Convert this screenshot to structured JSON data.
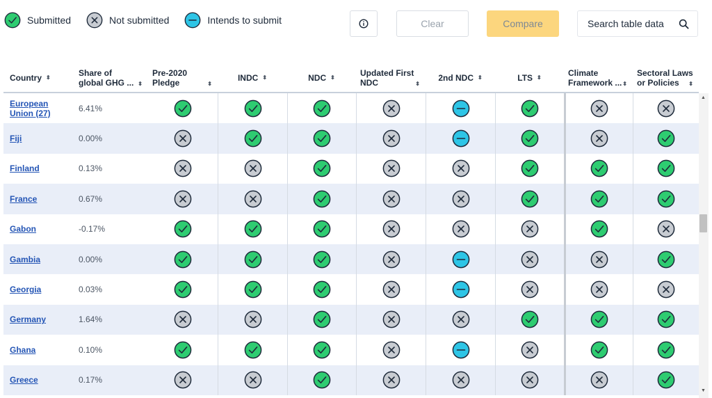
{
  "legend": [
    {
      "icon": "submitted",
      "label": "Submitted"
    },
    {
      "icon": "not-submitted",
      "label": "Not submitted"
    },
    {
      "icon": "intends",
      "label": "Intends to submit"
    }
  ],
  "toolbar": {
    "info_icon": "info-icon",
    "clear_label": "Clear",
    "compare_label": "Compare",
    "search_label": "Search table data",
    "search_icon": "search-icon"
  },
  "colors": {
    "submitted": "#2ecc71",
    "not_submitted": "#c8ccd2",
    "intends": "#2ec5e6",
    "link": "#2455b5",
    "compare_bg": "#fcd67e",
    "row_alt": "#e9eef8"
  },
  "table": {
    "columns": [
      {
        "key": "country",
        "label": "Country"
      },
      {
        "key": "share",
        "label_lines": [
          "Share of",
          "global GHG ..."
        ]
      },
      {
        "key": "pre2020",
        "label_lines": [
          "Pre-2020",
          "Pledge"
        ]
      },
      {
        "key": "indc",
        "label": "INDC"
      },
      {
        "key": "ndc",
        "label": "NDC"
      },
      {
        "key": "updated",
        "label_lines": [
          "Updated First",
          "NDC"
        ]
      },
      {
        "key": "ndc2",
        "label": "2nd NDC"
      },
      {
        "key": "lts",
        "label": "LTS"
      },
      {
        "key": "climate",
        "label_lines": [
          "Climate",
          "Framework ..."
        ]
      },
      {
        "key": "sectoral",
        "label_lines": [
          "Sectoral Laws",
          "or Policies"
        ]
      }
    ],
    "sort_glyph": "⬍",
    "rows": [
      {
        "country": "European Union (27)",
        "share": "6.41%",
        "statuses": [
          "submitted",
          "submitted",
          "submitted",
          "not-submitted",
          "intends",
          "submitted",
          "not-submitted",
          "not-submitted"
        ]
      },
      {
        "country": "Fiji",
        "share": "0.00%",
        "statuses": [
          "not-submitted",
          "submitted",
          "submitted",
          "not-submitted",
          "intends",
          "submitted",
          "not-submitted",
          "submitted"
        ]
      },
      {
        "country": "Finland",
        "share": "0.13%",
        "statuses": [
          "not-submitted",
          "not-submitted",
          "submitted",
          "not-submitted",
          "not-submitted",
          "submitted",
          "submitted",
          "submitted"
        ]
      },
      {
        "country": "France",
        "share": "0.67%",
        "statuses": [
          "not-submitted",
          "not-submitted",
          "submitted",
          "not-submitted",
          "not-submitted",
          "submitted",
          "submitted",
          "submitted"
        ]
      },
      {
        "country": "Gabon",
        "share": "-0.17%",
        "statuses": [
          "submitted",
          "submitted",
          "submitted",
          "not-submitted",
          "not-submitted",
          "not-submitted",
          "submitted",
          "not-submitted"
        ]
      },
      {
        "country": "Gambia",
        "share": "0.00%",
        "statuses": [
          "submitted",
          "submitted",
          "submitted",
          "not-submitted",
          "intends",
          "not-submitted",
          "not-submitted",
          "submitted"
        ]
      },
      {
        "country": "Georgia",
        "share": "0.03%",
        "statuses": [
          "submitted",
          "submitted",
          "submitted",
          "not-submitted",
          "intends",
          "not-submitted",
          "not-submitted",
          "not-submitted"
        ]
      },
      {
        "country": "Germany",
        "share": "1.64%",
        "statuses": [
          "not-submitted",
          "not-submitted",
          "submitted",
          "not-submitted",
          "not-submitted",
          "submitted",
          "submitted",
          "submitted"
        ]
      },
      {
        "country": "Ghana",
        "share": "0.10%",
        "statuses": [
          "submitted",
          "submitted",
          "submitted",
          "not-submitted",
          "intends",
          "not-submitted",
          "submitted",
          "submitted"
        ]
      },
      {
        "country": "Greece",
        "share": "0.17%",
        "statuses": [
          "not-submitted",
          "not-submitted",
          "submitted",
          "not-submitted",
          "not-submitted",
          "not-submitted",
          "not-submitted",
          "submitted"
        ]
      }
    ]
  }
}
